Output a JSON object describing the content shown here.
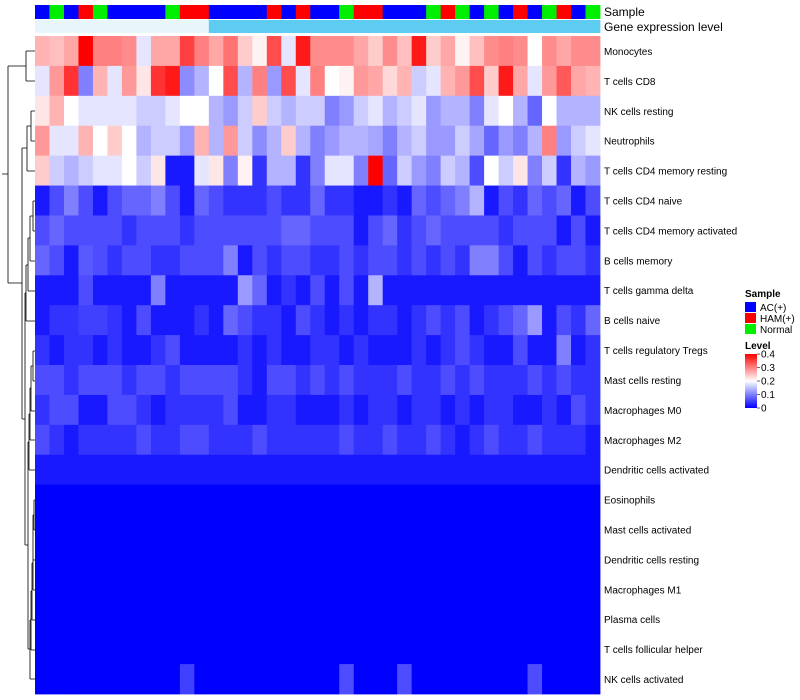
{
  "chart_data": {
    "type": "heatmap",
    "annotation_labels": {
      "sample": "Sample",
      "expression": "Gene expression level"
    },
    "legend_sample": {
      "title": "Sample",
      "items": [
        {
          "label": "AC(+)",
          "color": "#0000ff"
        },
        {
          "label": "HAM(+)",
          "color": "#ff0000"
        },
        {
          "label": "Normal",
          "color": "#00ee00"
        }
      ]
    },
    "legend_level": {
      "title": "Level",
      "ticks": [
        "0.4",
        "0.3",
        "0.2",
        "0.1",
        "0"
      ],
      "tick_values": [
        0.4,
        0.3,
        0.2,
        0.1,
        0
      ],
      "range": [
        0,
        0.4
      ],
      "colors": [
        "#0000ff",
        "#ffffff",
        "#ff0000"
      ]
    },
    "columns": 39,
    "sample_groups": [
      "AC(+)",
      "Normal",
      "AC(+)",
      "HAM(+)",
      "Normal",
      "AC(+)",
      "AC(+)",
      "AC(+)",
      "AC(+)",
      "Normal",
      "HAM(+)",
      "HAM(+)",
      "AC(+)",
      "AC(+)",
      "AC(+)",
      "AC(+)",
      "HAM(+)",
      "AC(+)",
      "HAM(+)",
      "AC(+)",
      "AC(+)",
      "Normal",
      "HAM(+)",
      "HAM(+)",
      "AC(+)",
      "AC(+)",
      "AC(+)",
      "Normal",
      "HAM(+)",
      "Normal",
      "AC(+)",
      "Normal",
      "AC(+)",
      "HAM(+)",
      "AC(+)",
      "Normal",
      "HAM(+)",
      "AC(+)",
      "Normal"
    ],
    "rows": [
      {
        "label": "Monocytes",
        "values": [
          0.26,
          0.25,
          0.27,
          0.4,
          0.3,
          0.3,
          0.29,
          0.18,
          0.27,
          0.27,
          0.35,
          0.3,
          0.27,
          0.31,
          0.24,
          0.21,
          0.34,
          0.18,
          0.38,
          0.29,
          0.29,
          0.29,
          0.27,
          0.24,
          0.29,
          0.25,
          0.38,
          0.24,
          0.27,
          0.21,
          0.25,
          0.29,
          0.3,
          0.29,
          0.2,
          0.29,
          0.27,
          0.29,
          0.29
        ]
      },
      {
        "label": "T cells CD8",
        "values": [
          0.18,
          0.28,
          0.36,
          0.1,
          0.26,
          0.18,
          0.28,
          0.22,
          0.36,
          0.38,
          0.11,
          0.14,
          0.2,
          0.34,
          0.14,
          0.3,
          0.12,
          0.34,
          0.18,
          0.3,
          0.2,
          0.21,
          0.28,
          0.27,
          0.23,
          0.26,
          0.16,
          0.18,
          0.26,
          0.28,
          0.34,
          0.24,
          0.38,
          0.27,
          0.18,
          0.28,
          0.33,
          0.27,
          0.26
        ]
      },
      {
        "label": "NK cells resting",
        "values": [
          0.22,
          0.26,
          0.2,
          0.18,
          0.18,
          0.18,
          0.18,
          0.16,
          0.16,
          0.18,
          0.2,
          0.2,
          0.14,
          0.12,
          0.16,
          0.24,
          0.16,
          0.14,
          0.16,
          0.16,
          0.1,
          0.12,
          0.16,
          0.18,
          0.14,
          0.16,
          0.18,
          0.12,
          0.14,
          0.14,
          0.1,
          0.18,
          0.2,
          0.14,
          0.08,
          0.2,
          0.14,
          0.14,
          0.14
        ]
      },
      {
        "label": "Neutrophils",
        "values": [
          0.28,
          0.18,
          0.18,
          0.26,
          0.2,
          0.24,
          0.2,
          0.14,
          0.16,
          0.16,
          0.12,
          0.26,
          0.14,
          0.28,
          0.16,
          0.11,
          0.14,
          0.24,
          0.14,
          0.1,
          0.12,
          0.14,
          0.14,
          0.13,
          0.1,
          0.14,
          0.16,
          0.12,
          0.12,
          0.16,
          0.13,
          0.08,
          0.12,
          0.1,
          0.14,
          0.3,
          0.12,
          0.16,
          0.18
        ]
      },
      {
        "label": "T cells CD4 memory resting",
        "values": [
          0.24,
          0.16,
          0.14,
          0.16,
          0.18,
          0.18,
          0.2,
          0.16,
          0.22,
          0.02,
          0.02,
          0.18,
          0.22,
          0.1,
          0.21,
          0.04,
          0.14,
          0.14,
          0.04,
          0.1,
          0.18,
          0.18,
          0.1,
          0.4,
          0.08,
          0.16,
          0.12,
          0.1,
          0.16,
          0.14,
          0.06,
          0.2,
          0.16,
          0.22,
          0.1,
          0.16,
          0.04,
          0.14,
          0.12
        ]
      },
      {
        "label": "T cells CD4 naive",
        "values": [
          0.02,
          0.06,
          0.1,
          0.06,
          0.02,
          0.06,
          0.08,
          0.08,
          0.1,
          0.06,
          0.02,
          0.08,
          0.06,
          0.04,
          0.04,
          0.04,
          0.06,
          0.04,
          0.04,
          0.08,
          0.04,
          0.04,
          0.02,
          0.02,
          0.04,
          0.02,
          0.08,
          0.06,
          0.08,
          0.1,
          0.14,
          0.02,
          0.06,
          0.04,
          0.08,
          0.06,
          0.08,
          0.02,
          0.06
        ]
      },
      {
        "label": "T cells CD4 memory activated",
        "values": [
          0.06,
          0.08,
          0.06,
          0.06,
          0.06,
          0.06,
          0.04,
          0.06,
          0.06,
          0.06,
          0.04,
          0.06,
          0.06,
          0.06,
          0.06,
          0.06,
          0.06,
          0.08,
          0.08,
          0.06,
          0.06,
          0.06,
          0.02,
          0.06,
          0.08,
          0.04,
          0.06,
          0.08,
          0.06,
          0.06,
          0.06,
          0.06,
          0.04,
          0.06,
          0.06,
          0.06,
          0.02,
          0.06,
          0.02
        ]
      },
      {
        "label": "B cells memory",
        "values": [
          0.08,
          0.06,
          0.02,
          0.07,
          0.06,
          0.04,
          0.06,
          0.06,
          0.04,
          0.04,
          0.06,
          0.06,
          0.06,
          0.1,
          0.02,
          0.06,
          0.04,
          0.06,
          0.06,
          0.04,
          0.04,
          0.06,
          0.04,
          0.06,
          0.06,
          0.04,
          0.06,
          0.04,
          0.06,
          0.04,
          0.1,
          0.1,
          0.06,
          0.02,
          0.06,
          0.04,
          0.06,
          0.06,
          0.04
        ]
      },
      {
        "label": "T cells gamma delta",
        "values": [
          0.02,
          0.02,
          0.02,
          0.06,
          0.02,
          0.02,
          0.02,
          0.02,
          0.1,
          0.02,
          0.02,
          0.02,
          0.02,
          0.02,
          0.12,
          0.08,
          0.02,
          0.04,
          0.02,
          0.06,
          0.02,
          0.06,
          0.02,
          0.14,
          0.02,
          0.02,
          0.02,
          0.02,
          0.02,
          0.02,
          0.02,
          0.02,
          0.02,
          0.02,
          0.02,
          0.02,
          0.02,
          0.02,
          0.02
        ]
      },
      {
        "label": "B cells naive",
        "values": [
          0.02,
          0.04,
          0.04,
          0.05,
          0.05,
          0.04,
          0.02,
          0.06,
          0.02,
          0.02,
          0.02,
          0.04,
          0.02,
          0.08,
          0.06,
          0.04,
          0.04,
          0.02,
          0.06,
          0.04,
          0.02,
          0.04,
          0.02,
          0.04,
          0.04,
          0.02,
          0.04,
          0.06,
          0.04,
          0.06,
          0.02,
          0.04,
          0.06,
          0.08,
          0.12,
          0.02,
          0.06,
          0.04,
          0.08
        ]
      },
      {
        "label": "T cells regulatory  Tregs",
        "values": [
          0.04,
          0.02,
          0.04,
          0.04,
          0.02,
          0.04,
          0.02,
          0.02,
          0.04,
          0.06,
          0.02,
          0.02,
          0.02,
          0.02,
          0.04,
          0.02,
          0.04,
          0.02,
          0.02,
          0.04,
          0.04,
          0.02,
          0.04,
          0.02,
          0.02,
          0.02,
          0.04,
          0.02,
          0.04,
          0.06,
          0.04,
          0.02,
          0.02,
          0.06,
          0.02,
          0.02,
          0.1,
          0.02,
          0.04
        ]
      },
      {
        "label": "Mast cells resting",
        "values": [
          0.06,
          0.06,
          0.04,
          0.06,
          0.06,
          0.06,
          0.04,
          0.06,
          0.06,
          0.04,
          0.06,
          0.06,
          0.06,
          0.06,
          0.04,
          0.02,
          0.06,
          0.06,
          0.04,
          0.06,
          0.04,
          0.06,
          0.04,
          0.04,
          0.04,
          0.06,
          0.04,
          0.04,
          0.06,
          0.04,
          0.06,
          0.04,
          0.04,
          0.04,
          0.06,
          0.04,
          0.06,
          0.04,
          0.04
        ]
      },
      {
        "label": "Macrophages M0",
        "values": [
          0.04,
          0.06,
          0.06,
          0.02,
          0.02,
          0.06,
          0.06,
          0.04,
          0.02,
          0.04,
          0.04,
          0.04,
          0.04,
          0.06,
          0.02,
          0.02,
          0.04,
          0.04,
          0.02,
          0.02,
          0.02,
          0.04,
          0.02,
          0.04,
          0.04,
          0.02,
          0.04,
          0.04,
          0.02,
          0.04,
          0.02,
          0.04,
          0.04,
          0.02,
          0.02,
          0.04,
          0.02,
          0.06,
          0.04
        ]
      },
      {
        "label": "Macrophages M2",
        "values": [
          0.06,
          0.04,
          0.02,
          0.04,
          0.04,
          0.04,
          0.04,
          0.06,
          0.04,
          0.04,
          0.06,
          0.06,
          0.04,
          0.04,
          0.04,
          0.06,
          0.04,
          0.04,
          0.04,
          0.04,
          0.04,
          0.06,
          0.04,
          0.04,
          0.06,
          0.04,
          0.04,
          0.06,
          0.04,
          0.02,
          0.04,
          0.06,
          0.04,
          0.04,
          0.06,
          0.04,
          0.04,
          0.04,
          0.02
        ]
      },
      {
        "label": "Dendritic cells activated",
        "values": [
          0.02,
          0.02,
          0.02,
          0.02,
          0.02,
          0.02,
          0.02,
          0.02,
          0.02,
          0.02,
          0.02,
          0.02,
          0.02,
          0.02,
          0.02,
          0.02,
          0.02,
          0.02,
          0.02,
          0.02,
          0.02,
          0.02,
          0.02,
          0.02,
          0.02,
          0.02,
          0.02,
          0.02,
          0.02,
          0.02,
          0.02,
          0.02,
          0.02,
          0.02,
          0.02,
          0.02,
          0.02,
          0.02,
          0.02
        ]
      },
      {
        "label": "Eosinophils",
        "values": [
          0,
          0,
          0,
          0,
          0,
          0,
          0,
          0,
          0,
          0,
          0,
          0,
          0,
          0,
          0,
          0,
          0,
          0,
          0,
          0,
          0,
          0,
          0,
          0,
          0,
          0,
          0,
          0,
          0,
          0,
          0,
          0,
          0,
          0,
          0,
          0,
          0,
          0,
          0
        ]
      },
      {
        "label": "Mast cells activated",
        "values": [
          0,
          0,
          0,
          0,
          0,
          0,
          0,
          0,
          0,
          0,
          0,
          0,
          0,
          0,
          0,
          0,
          0,
          0,
          0,
          0,
          0,
          0,
          0,
          0,
          0,
          0,
          0,
          0,
          0,
          0,
          0,
          0,
          0,
          0,
          0,
          0,
          0,
          0,
          0
        ]
      },
      {
        "label": "Dendritic cells resting",
        "values": [
          0,
          0,
          0,
          0,
          0,
          0,
          0,
          0,
          0,
          0,
          0,
          0,
          0,
          0,
          0,
          0,
          0,
          0,
          0,
          0,
          0,
          0,
          0,
          0,
          0,
          0,
          0,
          0,
          0,
          0,
          0,
          0,
          0,
          0,
          0,
          0,
          0,
          0,
          0
        ]
      },
      {
        "label": "Macrophages M1",
        "values": [
          0,
          0,
          0,
          0,
          0,
          0,
          0,
          0,
          0,
          0,
          0,
          0,
          0,
          0,
          0,
          0,
          0,
          0,
          0,
          0,
          0,
          0,
          0,
          0,
          0,
          0,
          0,
          0,
          0,
          0,
          0,
          0,
          0,
          0,
          0,
          0,
          0,
          0,
          0
        ]
      },
      {
        "label": "Plasma cells",
        "values": [
          0,
          0,
          0,
          0,
          0,
          0,
          0,
          0,
          0,
          0,
          0,
          0,
          0,
          0,
          0,
          0,
          0,
          0,
          0,
          0,
          0,
          0,
          0,
          0,
          0,
          0,
          0,
          0,
          0,
          0,
          0,
          0,
          0,
          0,
          0,
          0,
          0,
          0,
          0
        ]
      },
      {
        "label": "T cells follicular helper",
        "values": [
          0,
          0,
          0,
          0,
          0,
          0,
          0,
          0,
          0,
          0,
          0,
          0,
          0,
          0,
          0,
          0,
          0,
          0,
          0,
          0,
          0,
          0,
          0,
          0,
          0,
          0,
          0,
          0,
          0,
          0,
          0,
          0,
          0,
          0,
          0,
          0,
          0,
          0,
          0
        ]
      },
      {
        "label": "NK cells activated",
        "values": [
          0,
          0,
          0,
          0,
          0,
          0,
          0,
          0,
          0,
          0,
          0.05,
          0,
          0,
          0,
          0,
          0,
          0,
          0,
          0,
          0,
          0,
          0.06,
          0,
          0,
          0,
          0.06,
          0,
          0,
          0,
          0,
          0,
          0,
          0,
          0,
          0.06,
          0,
          0,
          0,
          0
        ]
      }
    ]
  }
}
